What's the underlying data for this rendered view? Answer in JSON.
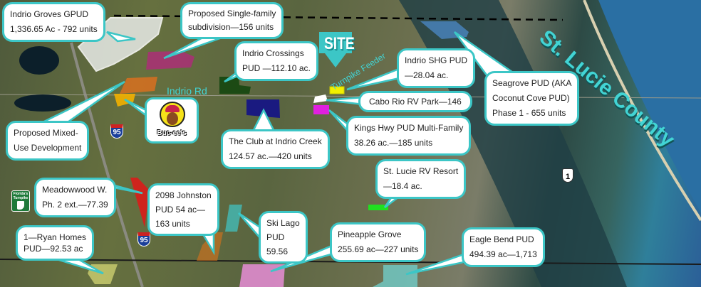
{
  "map": {
    "county_label": "St. Lucie County",
    "site_label": "SITE",
    "road_labels": {
      "indrio_rd": "Indrio Rd",
      "turnpike_feeder": "Turnpike Feeder"
    },
    "shields": {
      "i95_top": "95",
      "i95_bottom": "95",
      "us1": "1",
      "turnpike": "Florida's Turnpike"
    },
    "logo": "Buc-ee's",
    "accent_color": "#3cc6c6",
    "callouts": [
      {
        "id": "indrio-groves",
        "lines": [
          "Indrio Groves GPUD",
          "1,336.65 Ac - 792 units"
        ],
        "color": "#e8ebe8"
      },
      {
        "id": "single-family",
        "lines": [
          "Proposed Single-family",
          "subdivision—156 units"
        ],
        "color": "#b02a7a"
      },
      {
        "id": "indrio-crossings",
        "lines": [
          "Indrio Crossings",
          "PUD —112.10 ac."
        ],
        "color": "#1c4a14"
      },
      {
        "id": "indrio-shg",
        "lines": [
          "Indrio SHG PUD",
          "—28.04 ac."
        ],
        "color": "#f2f000"
      },
      {
        "id": "cabo-rio",
        "lines": [
          "Cabo Rio RV Park—146"
        ],
        "color": "#ffffff"
      },
      {
        "id": "seagrove",
        "lines": [
          "Seagrove PUD (AKA",
          "Coconut Cove PUD)",
          "Phase 1 - 655 units"
        ],
        "color": "#4a86c0"
      },
      {
        "id": "kings-hwy",
        "lines": [
          "Kings Hwy PUD Multi-Family",
          "38.26 ac.—185 units"
        ],
        "color": "#e020e0"
      },
      {
        "id": "mixed-use",
        "lines": [
          "Proposed Mixed-",
          "Use Development"
        ],
        "color": "#d87020"
      },
      {
        "id": "club-indrio-creek",
        "lines": [
          "The Club at Indrio Creek",
          "124.57 ac.—420 units"
        ],
        "color": "#1a1a80"
      },
      {
        "id": "st-lucie-rv",
        "lines": [
          "St. Lucie RV Resort",
          "—18.4 ac."
        ],
        "color": "#20e020"
      },
      {
        "id": "meadowwood",
        "lines": [
          "Meadowwood W.",
          "Ph. 2 ext.—77.39"
        ],
        "color": "#e01818"
      },
      {
        "id": "johnston",
        "lines": [
          "2098 Johnston",
          "PUD 54 ac—",
          "163 units"
        ],
        "color": "#c87020"
      },
      {
        "id": "ski-lago",
        "lines": [
          "Ski Lago",
          "PUD",
          "59.56"
        ],
        "color": "#40c8c8"
      },
      {
        "id": "pineapple-grove",
        "lines": [
          "Pineapple Grove",
          "255.69 ac—227 units"
        ],
        "color": "#f090e0"
      },
      {
        "id": "eagle-bend",
        "lines": [
          "Eagle Bend PUD",
          "494.39 ac—1,713"
        ],
        "color": "#70d8d8"
      },
      {
        "id": "ryan-homes",
        "lines": [
          "1—Ryan Homes",
          "PUD—92.53 ac"
        ],
        "color": "#f0f080"
      }
    ]
  }
}
